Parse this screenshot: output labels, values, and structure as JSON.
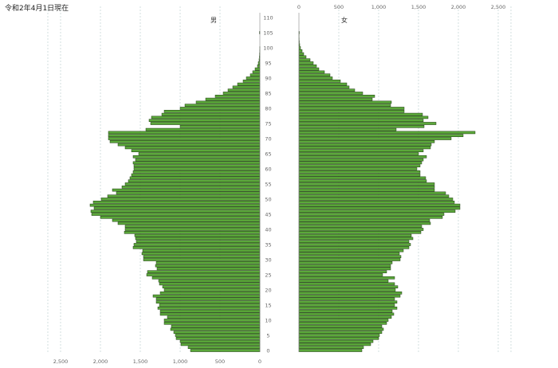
{
  "title": "令和2年4月1日現在",
  "colors": {
    "bar_fill": "#5ba83a",
    "bar_stroke": "#1d3a10",
    "grid": "#c8d8d8",
    "axis": "#888888"
  },
  "chart_data": {
    "type": "bar",
    "orientation": "population-pyramid",
    "title": "令和2年4月1日現在",
    "left_label": "男",
    "right_label": "女",
    "age_ticks": [
      "0",
      "5",
      "10",
      "15",
      "20",
      "25",
      "30",
      "35",
      "40",
      "45",
      "50",
      "55",
      "60",
      "65",
      "70",
      "75",
      "80",
      "85",
      "90",
      "95",
      "100",
      "105",
      "110"
    ],
    "value_ticks_left": [
      "2,500",
      "2,000",
      "1,500",
      "1,000",
      "500",
      "0"
    ],
    "value_ticks_right": [
      "0",
      "500",
      "1,000",
      "1,500",
      "2,000",
      "2,500"
    ],
    "xlim": [
      0,
      2500
    ],
    "ylim": [
      0,
      110
    ],
    "grid": true,
    "series": [
      {
        "name": "男",
        "ages": [
          0,
          1,
          2,
          3,
          4,
          5,
          6,
          7,
          8,
          9,
          10,
          11,
          12,
          13,
          14,
          15,
          16,
          17,
          18,
          19,
          20,
          21,
          22,
          23,
          24,
          25,
          26,
          27,
          28,
          29,
          30,
          31,
          32,
          33,
          34,
          35,
          36,
          37,
          38,
          39,
          40,
          41,
          42,
          43,
          44,
          45,
          46,
          47,
          48,
          49,
          50,
          51,
          52,
          53,
          54,
          55,
          56,
          57,
          58,
          59,
          60,
          61,
          62,
          63,
          64,
          65,
          66,
          67,
          68,
          69,
          70,
          71,
          72,
          73,
          74,
          75,
          76,
          77,
          78,
          79,
          80,
          81,
          82,
          83,
          84,
          85,
          86,
          87,
          88,
          89,
          90,
          91,
          92,
          93,
          94,
          95,
          96,
          97,
          98,
          99,
          100,
          101,
          102,
          103,
          104,
          105
        ],
        "values": [
          870,
          900,
          990,
          1000,
          1050,
          1060,
          1080,
          1120,
          1110,
          1200,
          1200,
          1160,
          1250,
          1250,
          1280,
          1260,
          1300,
          1300,
          1340,
          1250,
          1200,
          1220,
          1260,
          1270,
          1350,
          1420,
          1410,
          1290,
          1310,
          1300,
          1460,
          1460,
          1480,
          1470,
          1590,
          1580,
          1550,
          1560,
          1570,
          1700,
          1690,
          1690,
          1780,
          1850,
          2000,
          2110,
          2120,
          2080,
          2130,
          2090,
          1990,
          1910,
          1800,
          1850,
          1730,
          1690,
          1650,
          1630,
          1610,
          1590,
          1580,
          1580,
          1590,
          1560,
          1590,
          1520,
          1610,
          1690,
          1780,
          1880,
          1900,
          1900,
          1900,
          1430,
          1000,
          1370,
          1390,
          1360,
          1230,
          1200,
          1000,
          940,
          800,
          680,
          560,
          460,
          400,
          340,
          280,
          210,
          170,
          120,
          90,
          60,
          30,
          20,
          10,
          6,
          4,
          2,
          1,
          0,
          0,
          0,
          0,
          5
        ]
      },
      {
        "name": "女",
        "ages": [
          0,
          1,
          2,
          3,
          4,
          5,
          6,
          7,
          8,
          9,
          10,
          11,
          12,
          13,
          14,
          15,
          16,
          17,
          18,
          19,
          20,
          21,
          22,
          23,
          24,
          25,
          26,
          27,
          28,
          29,
          30,
          31,
          32,
          33,
          34,
          35,
          36,
          37,
          38,
          39,
          40,
          41,
          42,
          43,
          44,
          45,
          46,
          47,
          48,
          49,
          50,
          51,
          52,
          53,
          54,
          55,
          56,
          57,
          58,
          59,
          60,
          61,
          62,
          63,
          64,
          65,
          66,
          67,
          68,
          69,
          70,
          71,
          72,
          73,
          74,
          75,
          76,
          77,
          78,
          79,
          80,
          81,
          82,
          83,
          84,
          85,
          86,
          87,
          88,
          89,
          90,
          91,
          92,
          93,
          94,
          95,
          96,
          97,
          98,
          99,
          100,
          101,
          102,
          103,
          104,
          105
        ],
        "values": [
          790,
          810,
          900,
          930,
          1000,
          1010,
          1040,
          1060,
          1040,
          1100,
          1120,
          1160,
          1190,
          1170,
          1230,
          1200,
          1230,
          1200,
          1270,
          1290,
          1210,
          1240,
          1200,
          1120,
          1200,
          1050,
          1100,
          1150,
          1150,
          1170,
          1270,
          1280,
          1260,
          1310,
          1380,
          1400,
          1380,
          1430,
          1410,
          1530,
          1560,
          1540,
          1650,
          1640,
          1800,
          1820,
          1960,
          2020,
          2020,
          1950,
          1930,
          1880,
          1840,
          1700,
          1700,
          1700,
          1600,
          1590,
          1520,
          1520,
          1480,
          1520,
          1540,
          1560,
          1600,
          1500,
          1560,
          1650,
          1660,
          1700,
          1910,
          2060,
          2210,
          1220,
          1570,
          1720,
          1560,
          1620,
          1550,
          1320,
          1320,
          1150,
          1160,
          920,
          950,
          800,
          700,
          630,
          600,
          520,
          420,
          390,
          320,
          250,
          220,
          180,
          140,
          90,
          60,
          40,
          20,
          10,
          5,
          3,
          2,
          5
        ]
      }
    ]
  }
}
